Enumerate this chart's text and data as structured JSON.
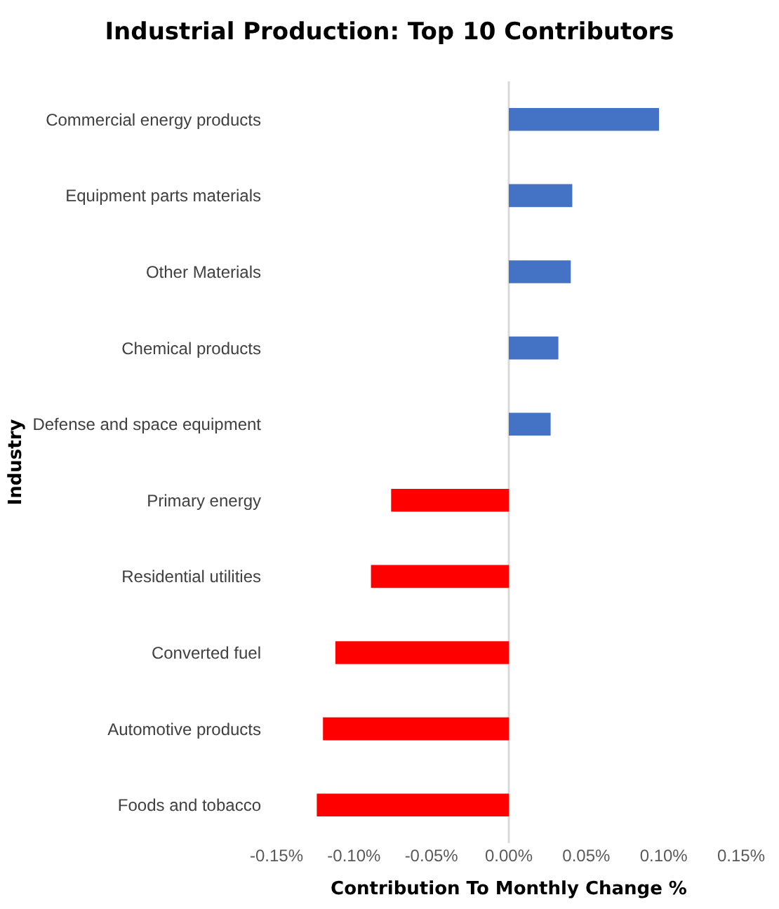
{
  "chart_data": {
    "type": "bar",
    "orientation": "horizontal",
    "title": "Industrial Production: Top 10 Contributors",
    "xlabel": "Contribution To Monthly Change %",
    "ylabel": "Industry",
    "categories": [
      "Commercial energy products",
      "Equipment parts materials",
      "Other Materials",
      "Chemical products",
      "Defense and space equipment",
      "Primary energy",
      "Residential utilities",
      "Converted fuel",
      "Automotive products",
      "Foods and tobacco"
    ],
    "values": [
      0.097,
      0.041,
      0.04,
      0.032,
      0.027,
      -0.076,
      -0.089,
      -0.112,
      -0.12,
      -0.124
    ],
    "colors": [
      "#4472c4",
      "#4472c4",
      "#4472c4",
      "#4472c4",
      "#4472c4",
      "#ff0000",
      "#ff0000",
      "#ff0000",
      "#ff0000",
      "#ff0000"
    ],
    "xlim": [
      -0.15,
      0.15
    ],
    "xticks": [
      {
        "value": -0.15,
        "label": "-0.15%"
      },
      {
        "value": -0.1,
        "label": "-0.10%"
      },
      {
        "value": -0.05,
        "label": "-0.05%"
      },
      {
        "value": 0,
        "label": "0.00%"
      },
      {
        "value": 0.05,
        "label": "0.05%"
      },
      {
        "value": 0.1,
        "label": "0.10%"
      },
      {
        "value": 0.15,
        "label": "0.15%"
      }
    ],
    "ref_lines": [
      {
        "axis": "x",
        "value": 0,
        "color": "#d9d9d9"
      }
    ],
    "grid": false,
    "legend": false
  }
}
